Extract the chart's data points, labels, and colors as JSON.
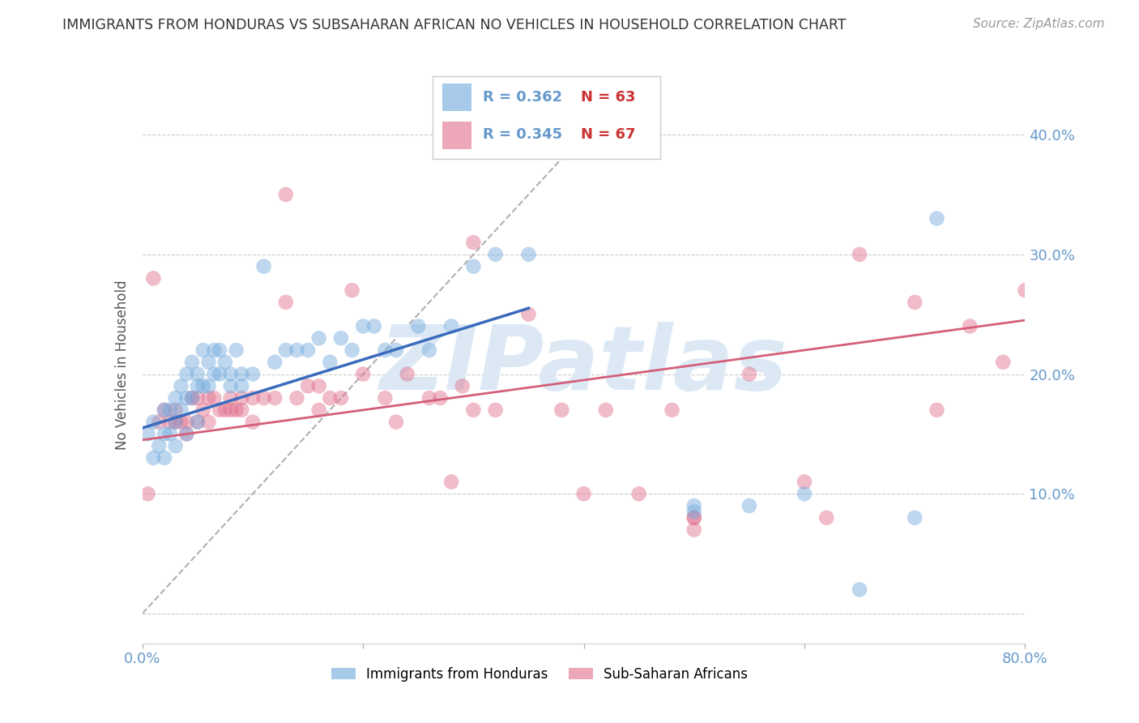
{
  "title": "IMMIGRANTS FROM HONDURAS VS SUBSAHARAN AFRICAN NO VEHICLES IN HOUSEHOLD CORRELATION CHART",
  "source": "Source: ZipAtlas.com",
  "ylabel": "No Vehicles in Household",
  "legend_r1": "R = 0.362",
  "legend_n1": "N = 63",
  "legend_r2": "R = 0.345",
  "legend_n2": "N = 67",
  "blue_color": "#6fa8dc",
  "pink_color": "#e06c8a",
  "blue_line_color": "#3a6bbd",
  "pink_line_color": "#d45f7a",
  "diag_color": "#b0b0b0",
  "watermark": "ZIPatlas",
  "watermark_color": "#dce9f5",
  "blue_scatter_x": [
    0.005,
    0.01,
    0.01,
    0.015,
    0.02,
    0.02,
    0.02,
    0.025,
    0.025,
    0.03,
    0.03,
    0.03,
    0.035,
    0.035,
    0.04,
    0.04,
    0.04,
    0.045,
    0.045,
    0.05,
    0.05,
    0.05,
    0.055,
    0.055,
    0.06,
    0.06,
    0.065,
    0.065,
    0.07,
    0.07,
    0.075,
    0.08,
    0.08,
    0.085,
    0.09,
    0.09,
    0.1,
    0.11,
    0.12,
    0.13,
    0.14,
    0.15,
    0.16,
    0.18,
    0.2,
    0.22,
    0.25,
    0.28,
    0.3,
    0.32,
    0.35,
    0.17,
    0.19,
    0.21,
    0.23,
    0.26,
    0.5,
    0.5,
    0.55,
    0.6,
    0.65,
    0.7,
    0.72
  ],
  "blue_scatter_y": [
    0.15,
    0.16,
    0.13,
    0.14,
    0.17,
    0.15,
    0.13,
    0.17,
    0.15,
    0.18,
    0.16,
    0.14,
    0.19,
    0.17,
    0.2,
    0.18,
    0.15,
    0.21,
    0.18,
    0.2,
    0.19,
    0.16,
    0.22,
    0.19,
    0.21,
    0.19,
    0.22,
    0.2,
    0.22,
    0.2,
    0.21,
    0.2,
    0.19,
    0.22,
    0.2,
    0.19,
    0.2,
    0.29,
    0.21,
    0.22,
    0.22,
    0.22,
    0.23,
    0.23,
    0.24,
    0.22,
    0.24,
    0.24,
    0.29,
    0.3,
    0.3,
    0.21,
    0.22,
    0.24,
    0.22,
    0.22,
    0.09,
    0.085,
    0.09,
    0.1,
    0.02,
    0.08,
    0.33
  ],
  "pink_scatter_x": [
    0.005,
    0.01,
    0.015,
    0.02,
    0.025,
    0.03,
    0.03,
    0.035,
    0.04,
    0.04,
    0.045,
    0.05,
    0.05,
    0.055,
    0.06,
    0.06,
    0.065,
    0.07,
    0.075,
    0.08,
    0.08,
    0.085,
    0.09,
    0.09,
    0.1,
    0.1,
    0.11,
    0.12,
    0.13,
    0.14,
    0.15,
    0.16,
    0.17,
    0.18,
    0.19,
    0.2,
    0.22,
    0.24,
    0.26,
    0.28,
    0.3,
    0.32,
    0.35,
    0.38,
    0.4,
    0.42,
    0.45,
    0.48,
    0.5,
    0.55,
    0.6,
    0.62,
    0.65,
    0.7,
    0.72,
    0.75,
    0.78,
    0.8,
    0.27,
    0.29,
    0.5,
    0.5,
    0.13,
    0.16,
    0.23,
    0.3
  ],
  "pink_scatter_y": [
    0.1,
    0.28,
    0.16,
    0.17,
    0.16,
    0.17,
    0.16,
    0.16,
    0.16,
    0.15,
    0.18,
    0.18,
    0.16,
    0.17,
    0.18,
    0.16,
    0.18,
    0.17,
    0.17,
    0.18,
    0.17,
    0.17,
    0.18,
    0.17,
    0.18,
    0.16,
    0.18,
    0.18,
    0.26,
    0.18,
    0.19,
    0.19,
    0.18,
    0.18,
    0.27,
    0.2,
    0.18,
    0.2,
    0.18,
    0.11,
    0.17,
    0.17,
    0.25,
    0.17,
    0.1,
    0.17,
    0.1,
    0.17,
    0.08,
    0.2,
    0.11,
    0.08,
    0.3,
    0.26,
    0.17,
    0.24,
    0.21,
    0.27,
    0.18,
    0.19,
    0.08,
    0.07,
    0.35,
    0.17,
    0.16,
    0.31
  ],
  "blue_line_x": [
    0.0,
    0.35
  ],
  "blue_line_y": [
    0.155,
    0.255
  ],
  "pink_line_x": [
    0.0,
    0.8
  ],
  "pink_line_y": [
    0.145,
    0.245
  ],
  "diag_line_x": [
    0.0,
    0.44
  ],
  "diag_line_y": [
    0.0,
    0.44
  ],
  "legend1_label": "Immigrants from Honduras",
  "legend2_label": "Sub-Saharan Africans",
  "xlim": [
    0.0,
    0.8
  ],
  "ylim": [
    -0.025,
    0.44
  ],
  "yticks": [
    0.0,
    0.1,
    0.2,
    0.3,
    0.4
  ],
  "ytick_labels": [
    "",
    "10.0%",
    "20.0%",
    "30.0%",
    "40.0%"
  ],
  "background_color": "#ffffff",
  "axis_color": "#6699cc",
  "grid_color": "#cccccc",
  "title_color": "#333333"
}
